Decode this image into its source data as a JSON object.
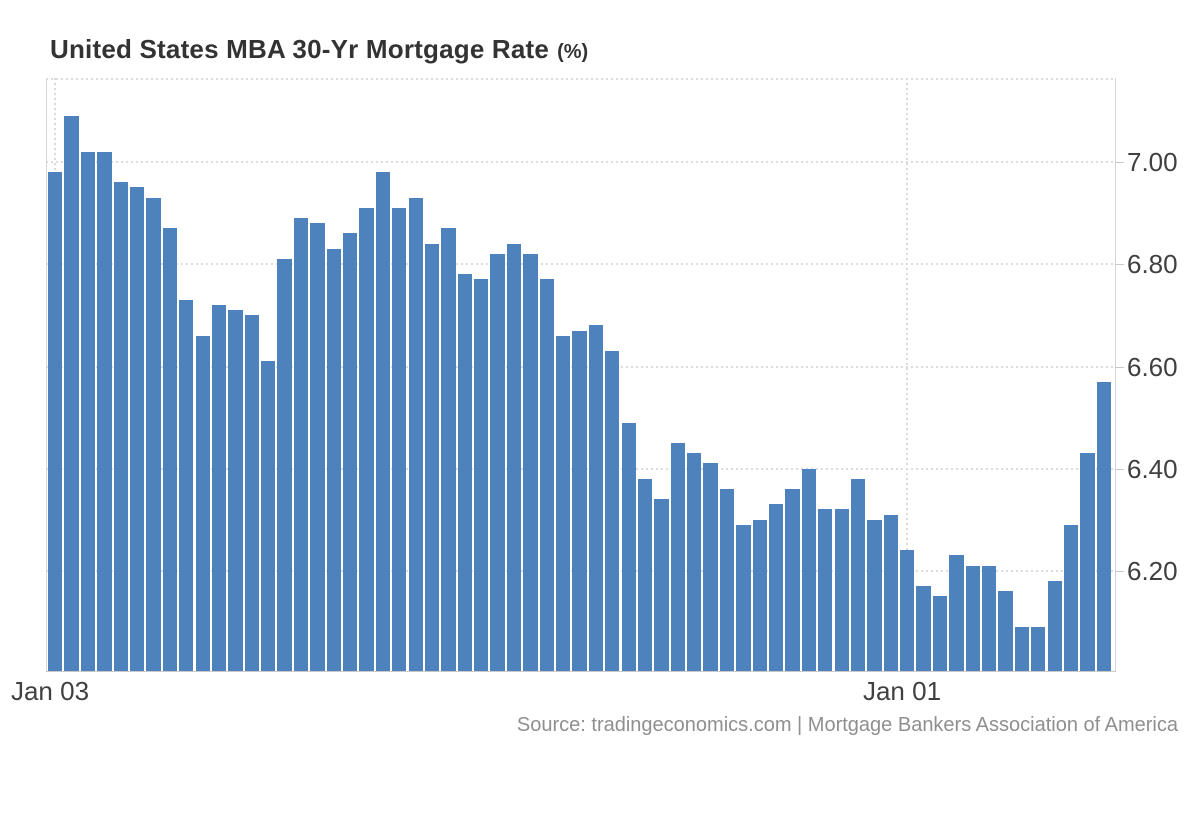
{
  "title": {
    "main": "United States MBA 30-Yr Mortgage Rate",
    "unit": "(%)"
  },
  "source": {
    "text": "Source: tradingeconomics.com | Mortgage Bankers Association of America"
  },
  "colors": {
    "bar": "#4d82bc",
    "grid": "#dcdcdc",
    "axis_line": "#c8c8c8",
    "title_text": "#333333",
    "axis_text": "#404040",
    "source_text": "#8f8f8f",
    "background": "#ffffff"
  },
  "chart_data": {
    "type": "bar",
    "title": "United States MBA 30-Yr Mortgage Rate (%)",
    "series_name": "MBA 30-Yr Mortgage Rate",
    "xlabel": "",
    "ylabel": "",
    "legend": "none",
    "grid": "dotted",
    "ylim": [
      6.0,
      7.17
    ],
    "y_ticks": [
      {
        "label": "7.00",
        "value": 7.0
      },
      {
        "label": "6.80",
        "value": 6.8
      },
      {
        "label": "6.60",
        "value": 6.6
      },
      {
        "label": "6.40",
        "value": 6.4
      },
      {
        "label": "6.20",
        "value": 6.2
      }
    ],
    "x_ticks": [
      {
        "label": "Jan 03",
        "bar_index": 0
      },
      {
        "label": "Jan 01",
        "bar_index": 52
      }
    ],
    "values": [
      6.98,
      7.09,
      7.02,
      7.02,
      6.96,
      6.95,
      6.93,
      6.87,
      6.73,
      6.66,
      6.72,
      6.71,
      6.7,
      6.61,
      6.81,
      6.89,
      6.88,
      6.83,
      6.86,
      6.91,
      6.98,
      6.91,
      6.93,
      6.84,
      6.87,
      6.78,
      6.77,
      6.82,
      6.84,
      6.82,
      6.77,
      6.66,
      6.67,
      6.68,
      6.63,
      6.49,
      6.38,
      6.34,
      6.45,
      6.43,
      6.41,
      6.36,
      6.29,
      6.3,
      6.33,
      6.36,
      6.4,
      6.32,
      6.32,
      6.38,
      6.3,
      6.31,
      6.24,
      6.17,
      6.15,
      6.23,
      6.21,
      6.21,
      6.16,
      6.09,
      6.09,
      6.18,
      6.29,
      6.43,
      6.57
    ]
  }
}
